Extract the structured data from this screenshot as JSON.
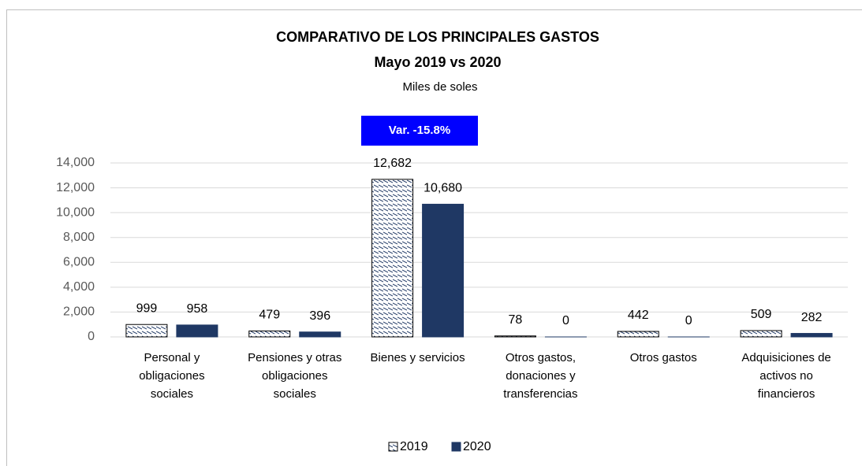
{
  "chart_data": {
    "type": "bar",
    "title": "COMPARATIVO DE LOS PRINCIPALES GASTOS",
    "subtitle": "Mayo 2019 vs 2020",
    "unit_label": "Miles  de soles",
    "annotation": "Var. -15.8%",
    "annotation_color": "#0000ff",
    "categories": [
      "Personal y obligaciones sociales",
      "Pensiones y otras obligaciones sociales",
      "Bienes y servicios",
      "Otros gastos, donaciones y transferencias",
      "Otros gastos",
      "Adquisiciones de activos no financieros"
    ],
    "series": [
      {
        "name": "2019",
        "color": "#1f3864",
        "hatch": true,
        "values": [
          999,
          479,
          12682,
          78,
          442,
          509
        ],
        "value_labels": [
          "999",
          "479",
          "12,682",
          "78",
          "442",
          "509"
        ]
      },
      {
        "name": "2020",
        "color": "#1f3864",
        "hatch": false,
        "values": [
          958,
          396,
          10680,
          0,
          0,
          282
        ],
        "value_labels": [
          "958",
          "396",
          "10,680",
          "0",
          "0",
          "282"
        ]
      }
    ],
    "ylim": [
      0,
      14000
    ],
    "yticks": [
      0,
      {
        "value": 2000,
        "label": "2,000"
      },
      {
        "value": 4000,
        "label": "4,000"
      },
      {
        "value": 6000,
        "label": "6,000"
      },
      {
        "value": 8000,
        "label": "8,000"
      },
      {
        "value": 10000,
        "label": "10,000"
      },
      {
        "value": 12000,
        "label": "12,000"
      },
      {
        "value": 14000,
        "label": "14,000"
      }
    ],
    "grid": true,
    "legend": "bottom"
  }
}
